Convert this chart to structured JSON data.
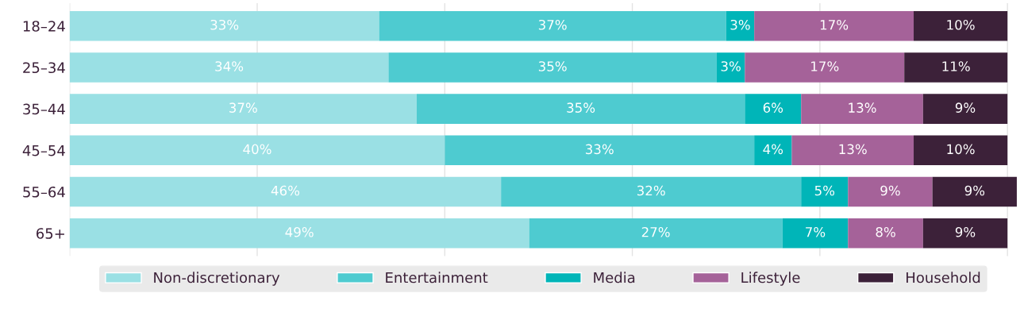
{
  "chart_data": {
    "type": "bar",
    "orientation": "horizontal",
    "stacked": true,
    "categories": [
      "18–24",
      "25–34",
      "35–44",
      "45–54",
      "55–64",
      "65+"
    ],
    "series": [
      {
        "name": "Non-discretionary",
        "color": "#9ae0e4",
        "values": [
          33,
          34,
          37,
          40,
          46,
          49
        ],
        "value_labels": [
          "33%",
          "34%",
          "37%",
          "40%",
          "46%",
          "49%"
        ]
      },
      {
        "name": "Entertainment",
        "color": "#4ecbd0",
        "values": [
          37,
          35,
          35,
          33,
          32,
          27
        ],
        "value_labels": [
          "37%",
          "35%",
          "35%",
          "33%",
          "32%",
          "27%"
        ]
      },
      {
        "name": "Media",
        "color": "#00b5b8",
        "values": [
          3,
          3,
          6,
          4,
          5,
          7
        ],
        "value_labels": [
          "3%",
          "3%",
          "6%",
          "4%",
          "5%",
          "7%"
        ]
      },
      {
        "name": "Lifestyle",
        "color": "#a56299",
        "values": [
          17,
          17,
          13,
          13,
          9,
          8
        ],
        "value_labels": [
          "17%",
          "17%",
          "13%",
          "13%",
          "9%",
          "8%"
        ]
      },
      {
        "name": "Household",
        "color": "#3c2139",
        "values": [
          10,
          11,
          9,
          10,
          9,
          9
        ],
        "value_labels": [
          "10%",
          "11%",
          "9%",
          "10%",
          "9%",
          "9%"
        ]
      }
    ],
    "grid": "x",
    "legend": "bottom",
    "tick_labels": "y"
  }
}
